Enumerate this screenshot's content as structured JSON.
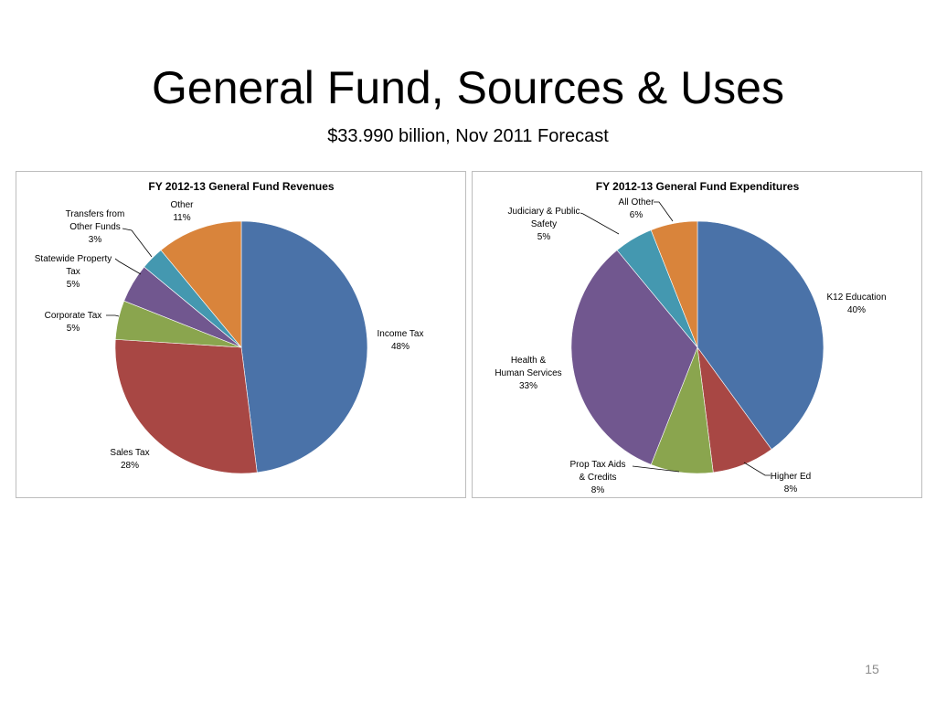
{
  "slide": {
    "title": "General Fund, Sources & Uses",
    "subtitle": "$33.990 billion, Nov 2011 Forecast",
    "number": "15"
  },
  "chart_data": [
    {
      "type": "pie",
      "title": "FY 2012-13 General Fund Revenues",
      "slices": [
        {
          "label": "Income Tax",
          "value_label": "48%",
          "value": 48,
          "color": "#4a72a8"
        },
        {
          "label": "Sales Tax",
          "value_label": "28%",
          "value": 28,
          "color": "#a84744"
        },
        {
          "label": "Corporate Tax",
          "value_label": "5%",
          "value": 5,
          "color": "#8aa54e"
        },
        {
          "label": "Statewide Property Tax",
          "value_label": "5%",
          "value": 5,
          "color": "#71578f"
        },
        {
          "label": "Transfers from Other Funds",
          "value_label": "3%",
          "value": 3,
          "color": "#4498b0"
        },
        {
          "label": "Other",
          "value_label": "11%",
          "value": 11,
          "color": "#d9843b"
        }
      ]
    },
    {
      "type": "pie",
      "title": "FY 2012-13 General Fund Expenditures",
      "slices": [
        {
          "label": "K12 Education",
          "value_label": "40%",
          "value": 40,
          "color": "#4a72a8"
        },
        {
          "label": "Higher Ed",
          "value_label": "8%",
          "value": 8,
          "color": "#a84744"
        },
        {
          "label": "Prop Tax Aids & Credits",
          "value_label": "8%",
          "value": 8,
          "color": "#8aa54e"
        },
        {
          "label": "Health & Human Services",
          "value_label": "33%",
          "value": 33,
          "color": "#71578f"
        },
        {
          "label": "Judiciary & Public Safety",
          "value_label": "5%",
          "value": 5,
          "color": "#4498b0"
        },
        {
          "label": "All Other",
          "value_label": "6%",
          "value": 6,
          "color": "#d9843b"
        }
      ]
    }
  ]
}
